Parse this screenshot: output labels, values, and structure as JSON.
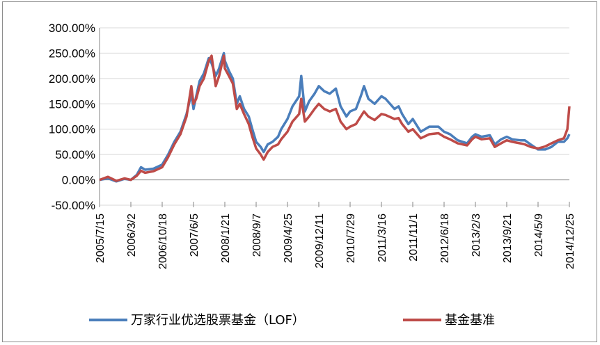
{
  "chart_data": {
    "type": "line",
    "title": "",
    "xlabel": "",
    "ylabel": "",
    "ylim": [
      -50,
      300
    ],
    "y_tick_labels": [
      "300.00%",
      "250.00%",
      "200.00%",
      "150.00%",
      "100.00%",
      "50.00%",
      "0.00%",
      "-50.00%"
    ],
    "y_ticks": [
      300,
      250,
      200,
      150,
      100,
      50,
      0,
      -50
    ],
    "x_tick_labels": [
      "2005/7/15",
      "2006/3/2",
      "2006/10/18",
      "2007/6/5",
      "2008/1/21",
      "2008/9/7",
      "2009/4/25",
      "2009/12/11",
      "2010/7/29",
      "2011/3/16",
      "2011/11/1",
      "2012/6/18",
      "2013/2/3",
      "2013/9/21",
      "2014/5/9",
      "2014/12/25"
    ],
    "grid": true,
    "legend_position": "bottom",
    "series": [
      {
        "name": "万家行业优选股票基金（LOF）",
        "color": "#4a7ebb",
        "points": [
          [
            "2005/7/15",
            0
          ],
          [
            "2005/9/15",
            3
          ],
          [
            "2005/11/15",
            -3
          ],
          [
            "2006/1/15",
            2
          ],
          [
            "2006/3/2",
            0
          ],
          [
            "2006/4/15",
            10
          ],
          [
            "2006/5/15",
            25
          ],
          [
            "2006/6/15",
            20
          ],
          [
            "2006/8/15",
            22
          ],
          [
            "2006/10/18",
            30
          ],
          [
            "2006/12/1",
            50
          ],
          [
            "2007/1/15",
            75
          ],
          [
            "2007/3/1",
            95
          ],
          [
            "2007/4/15",
            130
          ],
          [
            "2007/5/20",
            170
          ],
          [
            "2007/6/5",
            140
          ],
          [
            "2007/6/25",
            165
          ],
          [
            "2007/7/20",
            195
          ],
          [
            "2007/8/20",
            210
          ],
          [
            "2007/9/25",
            240
          ],
          [
            "2007/10/16",
            230
          ],
          [
            "2007/11/15",
            205
          ],
          [
            "2007/12/10",
            220
          ],
          [
            "2008/1/14",
            250
          ],
          [
            "2008/1/21",
            235
          ],
          [
            "2008/2/20",
            215
          ],
          [
            "2008/3/20",
            200
          ],
          [
            "2008/4/18",
            150
          ],
          [
            "2008/5/10",
            165
          ],
          [
            "2008/6/10",
            140
          ],
          [
            "2008/7/15",
            125
          ],
          [
            "2008/8/10",
            100
          ],
          [
            "2008/9/7",
            75
          ],
          [
            "2008/10/10",
            65
          ],
          [
            "2008/11/1",
            55
          ],
          [
            "2008/12/1",
            70
          ],
          [
            "2009/1/5",
            75
          ],
          [
            "2009/2/15",
            85
          ],
          [
            "2009/3/10",
            100
          ],
          [
            "2009/4/25",
            120
          ],
          [
            "2009/6/1",
            145
          ],
          [
            "2009/7/20",
            165
          ],
          [
            "2009/8/4",
            205
          ],
          [
            "2009/8/31",
            135
          ],
          [
            "2009/10/1",
            155
          ],
          [
            "2009/11/10",
            170
          ],
          [
            "2009/12/11",
            185
          ],
          [
            "2010/1/20",
            175
          ],
          [
            "2010/3/1",
            170
          ],
          [
            "2010/4/15",
            180
          ],
          [
            "2010/5/20",
            145
          ],
          [
            "2010/7/2",
            125
          ],
          [
            "2010/7/29",
            135
          ],
          [
            "2010/9/10",
            140
          ],
          [
            "2010/10/15",
            165
          ],
          [
            "2010/11/8",
            185
          ],
          [
            "2010/12/10",
            160
          ],
          [
            "2011/1/25",
            150
          ],
          [
            "2011/3/16",
            165
          ],
          [
            "2011/4/15",
            160
          ],
          [
            "2011/6/20",
            140
          ],
          [
            "2011/7/20",
            145
          ],
          [
            "2011/8/15",
            130
          ],
          [
            "2011/9/30",
            110
          ],
          [
            "2011/11/1",
            120
          ],
          [
            "2011/12/30",
            95
          ],
          [
            "2012/3/1",
            105
          ],
          [
            "2012/5/7",
            105
          ],
          [
            "2012/6/18",
            95
          ],
          [
            "2012/8/1",
            90
          ],
          [
            "2012/9/26",
            78
          ],
          [
            "2012/12/4",
            72
          ],
          [
            "2013/1/10",
            85
          ],
          [
            "2013/2/3",
            90
          ],
          [
            "2013/3/20",
            85
          ],
          [
            "2013/5/20",
            88
          ],
          [
            "2013/6/25",
            70
          ],
          [
            "2013/8/10",
            80
          ],
          [
            "2013/9/21",
            85
          ],
          [
            "2013/11/1",
            80
          ],
          [
            "2013/12/30",
            78
          ],
          [
            "2014/2/1",
            78
          ],
          [
            "2014/3/15",
            70
          ],
          [
            "2014/5/9",
            60
          ],
          [
            "2014/7/1",
            60
          ],
          [
            "2014/8/15",
            65
          ],
          [
            "2014/10/1",
            75
          ],
          [
            "2014/11/15",
            75
          ],
          [
            "2014/12/10",
            82
          ],
          [
            "2014/12/25",
            90
          ]
        ]
      },
      {
        "name": "基金基准",
        "color": "#be4b48",
        "points": [
          [
            "2005/7/15",
            0
          ],
          [
            "2005/9/15",
            6
          ],
          [
            "2005/11/15",
            -2
          ],
          [
            "2006/1/15",
            3
          ],
          [
            "2006/3/2",
            0
          ],
          [
            "2006/4/15",
            8
          ],
          [
            "2006/5/15",
            18
          ],
          [
            "2006/6/15",
            14
          ],
          [
            "2006/8/15",
            17
          ],
          [
            "2006/10/18",
            25
          ],
          [
            "2006/12/1",
            45
          ],
          [
            "2007/1/15",
            70
          ],
          [
            "2007/3/1",
            90
          ],
          [
            "2007/4/15",
            125
          ],
          [
            "2007/5/20",
            185
          ],
          [
            "2007/6/5",
            150
          ],
          [
            "2007/6/25",
            160
          ],
          [
            "2007/7/20",
            185
          ],
          [
            "2007/8/20",
            200
          ],
          [
            "2007/9/25",
            235
          ],
          [
            "2007/10/16",
            245
          ],
          [
            "2007/11/15",
            185
          ],
          [
            "2007/12/10",
            205
          ],
          [
            "2008/1/14",
            245
          ],
          [
            "2008/1/21",
            220
          ],
          [
            "2008/2/20",
            205
          ],
          [
            "2008/3/20",
            190
          ],
          [
            "2008/4/18",
            140
          ],
          [
            "2008/5/10",
            150
          ],
          [
            "2008/6/10",
            130
          ],
          [
            "2008/7/15",
            110
          ],
          [
            "2008/8/10",
            85
          ],
          [
            "2008/9/7",
            62
          ],
          [
            "2008/10/10",
            50
          ],
          [
            "2008/11/1",
            40
          ],
          [
            "2008/12/1",
            55
          ],
          [
            "2009/1/5",
            65
          ],
          [
            "2009/2/15",
            70
          ],
          [
            "2009/3/10",
            80
          ],
          [
            "2009/4/25",
            95
          ],
          [
            "2009/6/1",
            115
          ],
          [
            "2009/7/20",
            130
          ],
          [
            "2009/8/4",
            160
          ],
          [
            "2009/8/31",
            115
          ],
          [
            "2009/10/1",
            125
          ],
          [
            "2009/11/10",
            140
          ],
          [
            "2009/12/11",
            150
          ],
          [
            "2010/1/20",
            140
          ],
          [
            "2010/3/1",
            135
          ],
          [
            "2010/4/15",
            140
          ],
          [
            "2010/5/20",
            115
          ],
          [
            "2010/7/2",
            100
          ],
          [
            "2010/7/29",
            105
          ],
          [
            "2010/9/10",
            110
          ],
          [
            "2010/10/15",
            125
          ],
          [
            "2010/11/8",
            135
          ],
          [
            "2010/12/10",
            125
          ],
          [
            "2011/1/25",
            118
          ],
          [
            "2011/3/16",
            130
          ],
          [
            "2011/4/15",
            128
          ],
          [
            "2011/6/20",
            120
          ],
          [
            "2011/7/20",
            122
          ],
          [
            "2011/8/15",
            110
          ],
          [
            "2011/9/30",
            95
          ],
          [
            "2011/11/1",
            100
          ],
          [
            "2011/12/30",
            82
          ],
          [
            "2012/3/1",
            90
          ],
          [
            "2012/5/7",
            92
          ],
          [
            "2012/6/18",
            85
          ],
          [
            "2012/8/1",
            80
          ],
          [
            "2012/9/26",
            72
          ],
          [
            "2012/12/4",
            68
          ],
          [
            "2013/1/10",
            80
          ],
          [
            "2013/2/3",
            85
          ],
          [
            "2013/3/20",
            80
          ],
          [
            "2013/5/20",
            82
          ],
          [
            "2013/6/25",
            65
          ],
          [
            "2013/8/10",
            72
          ],
          [
            "2013/9/21",
            78
          ],
          [
            "2013/11/1",
            75
          ],
          [
            "2013/12/30",
            72
          ],
          [
            "2014/2/1",
            70
          ],
          [
            "2014/3/15",
            65
          ],
          [
            "2014/5/9",
            62
          ],
          [
            "2014/7/1",
            66
          ],
          [
            "2014/8/15",
            72
          ],
          [
            "2014/10/1",
            78
          ],
          [
            "2014/11/15",
            82
          ],
          [
            "2014/12/10",
            100
          ],
          [
            "2014/12/25",
            145
          ]
        ]
      }
    ]
  }
}
